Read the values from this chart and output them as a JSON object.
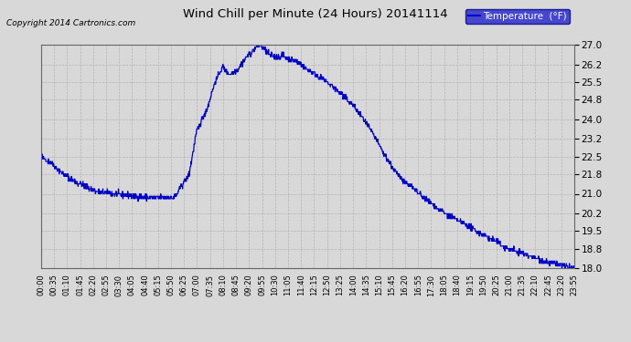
{
  "title": "Wind Chill per Minute (24 Hours) 20141114",
  "copyright": "Copyright 2014 Cartronics.com",
  "legend_label": "Temperature  (°F)",
  "line_color": "#0000cc",
  "background_color": "#d8d8d8",
  "plot_bg_color": "#d8d8d8",
  "grid_color": "#aaaaaa",
  "ylim": [
    18.0,
    27.0
  ],
  "yticks": [
    18.0,
    18.8,
    19.5,
    20.2,
    21.0,
    21.8,
    22.5,
    23.2,
    24.0,
    24.8,
    25.5,
    26.2,
    27.0
  ],
  "xtick_labels": [
    "00:00",
    "00:35",
    "01:10",
    "01:45",
    "02:20",
    "02:55",
    "03:30",
    "04:05",
    "04:40",
    "05:15",
    "05:50",
    "06:25",
    "07:00",
    "07:35",
    "08:10",
    "08:45",
    "09:20",
    "09:55",
    "10:30",
    "11:05",
    "11:40",
    "12:15",
    "12:50",
    "13:25",
    "14:00",
    "14:35",
    "15:10",
    "15:45",
    "16:20",
    "16:55",
    "17:30",
    "18:05",
    "18:40",
    "19:15",
    "19:50",
    "20:25",
    "21:00",
    "21:35",
    "22:10",
    "22:45",
    "23:20",
    "23:55"
  ],
  "control_times": [
    0,
    30,
    60,
    90,
    150,
    200,
    250,
    300,
    360,
    400,
    420,
    450,
    470,
    490,
    510,
    530,
    555,
    575,
    590,
    600,
    615,
    630,
    650,
    670,
    690,
    720,
    750,
    780,
    810,
    840,
    870,
    900,
    930,
    960,
    1020,
    1080,
    1140,
    1200,
    1260,
    1320,
    1380,
    1439
  ],
  "control_vals": [
    22.5,
    22.2,
    21.8,
    21.5,
    21.1,
    21.0,
    20.9,
    20.85,
    20.85,
    21.8,
    23.5,
    24.5,
    25.5,
    26.1,
    25.8,
    26.0,
    26.5,
    26.8,
    27.0,
    26.85,
    26.6,
    26.5,
    26.55,
    26.4,
    26.3,
    26.0,
    25.7,
    25.4,
    25.0,
    24.6,
    24.0,
    23.3,
    22.5,
    21.8,
    21.0,
    20.3,
    19.8,
    19.3,
    18.8,
    18.5,
    18.2,
    18.0
  ]
}
